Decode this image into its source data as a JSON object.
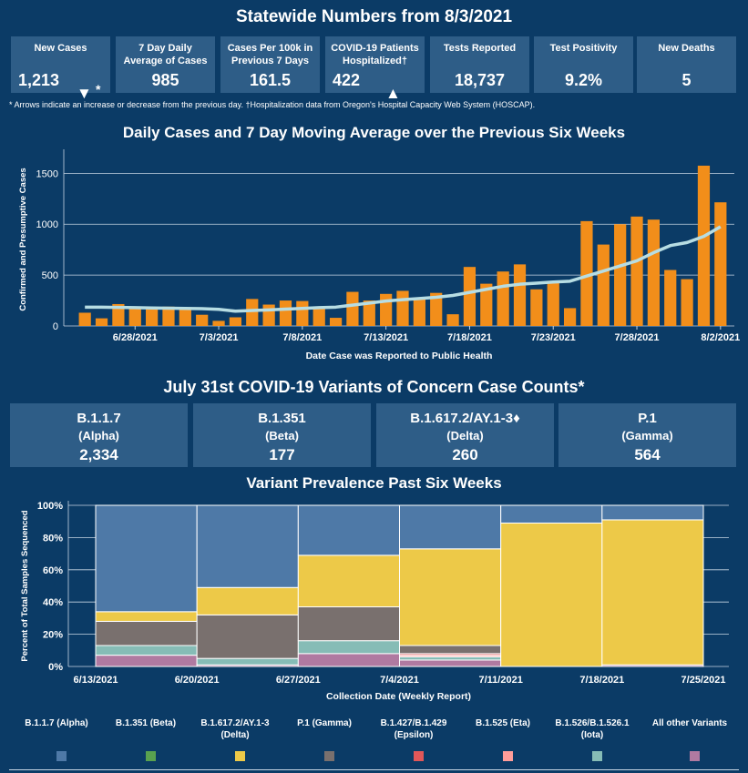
{
  "header": {
    "title": "Statewide Numbers from 8/3/2021"
  },
  "stats": [
    {
      "label": "New Cases",
      "value": "1,213",
      "arrow": "▼",
      "mark": "*"
    },
    {
      "label": "7 Day Daily Average of Cases",
      "value": "985"
    },
    {
      "label": "Cases Per 100k in Previous 7 Days",
      "value": "161.5"
    },
    {
      "label": "COVID-19 Patients Hospitalized†",
      "value": "422",
      "arrow": "▲"
    },
    {
      "label": "Tests Reported",
      "value": "18,737"
    },
    {
      "label": "Test Positivity",
      "value": "9.2%"
    },
    {
      "label": "New Deaths",
      "value": "5"
    }
  ],
  "footnote": "* Arrows indicate an increase or decrease from the previous day. †Hospitalization data from Oregon's Hospital Capacity Web System (HOSCAP).",
  "colors": {
    "bg": "#0b3b66",
    "card": "#2e5d87",
    "bar": "#f28e1a",
    "line": "#b7dde3"
  },
  "chart_data": [
    {
      "type": "bar",
      "title": "Daily Cases and 7 Day Moving Average over the Previous Six Weeks",
      "xlabel": "Date Case was Reported to Public Health",
      "ylabel": "Confirmed and Presumptive Cases",
      "ylim": [
        0,
        1700
      ],
      "yticks": [
        0,
        500,
        1000,
        1500
      ],
      "grid": true,
      "x_ticks": [
        {
          "i": 3,
          "label": "6/28/2021"
        },
        {
          "i": 8,
          "label": "7/3/2021"
        },
        {
          "i": 13,
          "label": "7/8/2021"
        },
        {
          "i": 18,
          "label": "7/13/2021"
        },
        {
          "i": 23,
          "label": "7/18/2021"
        },
        {
          "i": 28,
          "label": "7/23/2021"
        },
        {
          "i": 33,
          "label": "7/28/2021"
        },
        {
          "i": 38,
          "label": "8/2/2021"
        }
      ],
      "series": [
        {
          "values": [
            130,
            75,
            215,
            175,
            165,
            190,
            180,
            110,
            50,
            85,
            265,
            210,
            250,
            245,
            175,
            80,
            335,
            250,
            315,
            345,
            280,
            325,
            115,
            580,
            415,
            535,
            605,
            360,
            440,
            175,
            1030,
            800,
            1000,
            1075,
            1045,
            550,
            460,
            1575,
            1215
          ]
        },
        {
          "values": [
            185,
            185,
            182,
            180,
            177,
            174,
            172,
            170,
            163,
            145,
            152,
            158,
            165,
            172,
            180,
            185,
            205,
            225,
            245,
            258,
            270,
            282,
            300,
            330,
            360,
            390,
            410,
            420,
            432,
            440,
            490,
            540,
            590,
            640,
            720,
            790,
            820,
            880,
            975
          ]
        }
      ]
    },
    {
      "type": "bar",
      "title": "Variant Prevalence Past Six Weeks",
      "xlabel": "Collection Date (Weekly Report)",
      "ylabel": "Percent of Total Samples Sequenced",
      "ylim": [
        0,
        100
      ],
      "yticks": [
        "0%",
        "20%",
        "40%",
        "60%",
        "80%",
        "100%"
      ],
      "categories": [
        "6/13/2021",
        "6/20/2021",
        "6/27/2021",
        "7/4/2021",
        "7/11/2021",
        "7/18/2021",
        "7/25/2021"
      ],
      "series": [
        {
          "name": "All other Variants",
          "color": "#b07aa1",
          "values": [
            7,
            1,
            8,
            4,
            0,
            1,
            3
          ]
        },
        {
          "name": "B.1.526/B.1.526.1 (Iota)",
          "color": "#86bcb6",
          "values": [
            6,
            4,
            8,
            2,
            0,
            0,
            0
          ]
        },
        {
          "name": "B.1.525 (Eta)",
          "color": "#ff9d9a",
          "values": [
            0,
            0,
            0,
            1,
            0,
            0,
            0
          ]
        },
        {
          "name": "B.1.427/B.1.429 (Epsilon)",
          "color": "#e15759",
          "values": [
            0,
            0,
            0,
            1,
            0,
            0,
            0
          ]
        },
        {
          "name": "P.1 (Gamma)",
          "color": "#79706e",
          "values": [
            15,
            27,
            21,
            5,
            0,
            0,
            0
          ]
        },
        {
          "name": "B.1.617.2/AY.1-3 (Delta)",
          "color": "#edc948",
          "values": [
            6,
            17,
            32,
            60,
            89,
            90,
            89
          ]
        },
        {
          "name": "B.1.351 (Beta)",
          "color": "#59a14f",
          "values": [
            0,
            0,
            0,
            0,
            0,
            0,
            0
          ]
        },
        {
          "name": "B.1.1.7 (Alpha)",
          "color": "#4e79a7",
          "values": [
            66,
            51,
            31,
            27,
            11,
            9,
            8
          ]
        }
      ]
    }
  ],
  "variants_title": "July 31st  COVID-19 Variants of Concern Case Counts*",
  "variants": [
    {
      "name": "B.1.1.7",
      "greek": "(Alpha)",
      "value": "2,334"
    },
    {
      "name": "B.1.351",
      "greek": "(Beta)",
      "value": "177"
    },
    {
      "name": "B.1.617.2/AY.1-3♦",
      "greek": "(Delta)",
      "value": "260"
    },
    {
      "name": "P.1",
      "greek": "(Gamma)",
      "value": "564"
    }
  ],
  "legend": [
    {
      "label": "B.1.1.7 (Alpha)",
      "color": "#4e79a7"
    },
    {
      "label": "B.1.351 (Beta)",
      "color": "#59a14f"
    },
    {
      "label": "B.1.617.2/AY.1-3 (Delta)",
      "color": "#edc948"
    },
    {
      "label": "P.1 (Gamma)",
      "color": "#79706e"
    },
    {
      "label": "B.1.427/B.1.429 (Epsilon)",
      "color": "#e15759"
    },
    {
      "label": "B.1.525 (Eta)",
      "color": "#ff9d9a"
    },
    {
      "label": "B.1.526/B.1.526.1 (Iota)",
      "color": "#86bcb6"
    },
    {
      "label": "All other Variants",
      "color": "#b07aa1"
    }
  ]
}
